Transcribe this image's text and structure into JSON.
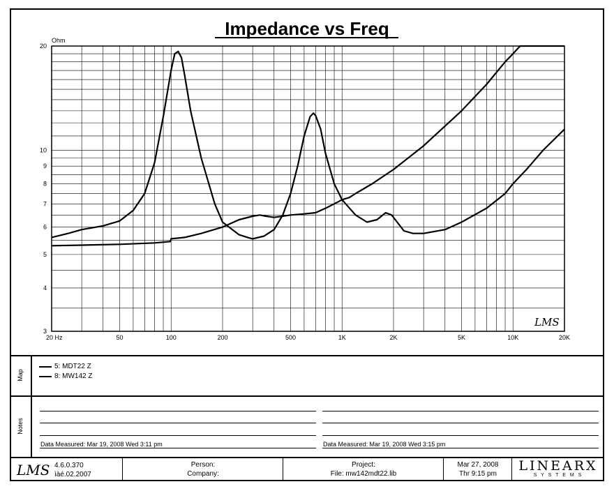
{
  "chart_data": {
    "type": "line",
    "title": "Impedance vs Freq",
    "ylabel": "Ohm",
    "x_scale": "log",
    "y_scale": "log",
    "xlim": [
      20,
      20000
    ],
    "ylim": [
      3,
      20
    ],
    "x_ticks": [
      20,
      50,
      100,
      200,
      500,
      1000,
      2000,
      5000,
      10000,
      20000
    ],
    "x_tick_labels": [
      "20  Hz",
      "50",
      "100",
      "200",
      "500",
      "1K",
      "2K",
      "5K",
      "10K",
      "20K"
    ],
    "y_ticks": [
      3,
      4,
      5,
      6,
      7,
      8,
      9,
      10,
      20
    ],
    "y_tick_labels": [
      "3",
      "4",
      "5",
      "6",
      "7",
      "8",
      "9",
      "10",
      "20"
    ],
    "grid": true,
    "series": [
      {
        "name": "5: MDT22 Z",
        "x": [
          20,
          30,
          50,
          80,
          99,
          100,
          120,
          150,
          200,
          250,
          300,
          330,
          360,
          400,
          500,
          600,
          700,
          800,
          900,
          950,
          1000,
          1100,
          1200,
          1500,
          2000,
          3000,
          5000,
          7000,
          9000,
          10000,
          11000,
          12000,
          20000
        ],
        "y": [
          5.3,
          5.32,
          5.35,
          5.4,
          5.45,
          5.55,
          5.6,
          5.75,
          6.0,
          6.3,
          6.45,
          6.5,
          6.45,
          6.4,
          6.5,
          6.55,
          6.6,
          6.8,
          7.0,
          7.1,
          7.2,
          7.3,
          7.5,
          8.0,
          8.8,
          10.3,
          13.0,
          15.5,
          18.0,
          19.0,
          20.0,
          20.0,
          20.0
        ]
      },
      {
        "name": "8: MW142 Z",
        "x": [
          20,
          25,
          30,
          40,
          50,
          60,
          70,
          80,
          90,
          100,
          105,
          110,
          115,
          120,
          130,
          150,
          180,
          200,
          250,
          280,
          300,
          350,
          400,
          450,
          500,
          550,
          600,
          650,
          680,
          700,
          750,
          800,
          900,
          1000,
          1200,
          1400,
          1600,
          1800,
          1950,
          2100,
          2300,
          2600,
          3000,
          4000,
          5000,
          7000,
          9000,
          10000,
          12000,
          15000,
          20000
        ],
        "y": [
          5.6,
          5.75,
          5.9,
          6.05,
          6.25,
          6.7,
          7.5,
          9.2,
          12.5,
          17.0,
          19.0,
          19.3,
          18.5,
          16.5,
          13.0,
          9.5,
          7.0,
          6.2,
          5.7,
          5.6,
          5.55,
          5.65,
          5.9,
          6.5,
          7.5,
          9.0,
          11.0,
          12.5,
          12.8,
          12.6,
          11.5,
          9.8,
          8.0,
          7.2,
          6.5,
          6.2,
          6.3,
          6.6,
          6.5,
          6.2,
          5.85,
          5.75,
          5.75,
          5.9,
          6.2,
          6.8,
          7.5,
          8.0,
          8.8,
          10.0,
          11.5
        ]
      }
    ]
  },
  "map": {
    "label": "Map",
    "entries": [
      "5: MDT22 Z",
      "8: MW142 Z"
    ]
  },
  "notes": {
    "label": "Notes",
    "left_measured": "Data Measured: Mar 19, 2008  Wed  3:11 pm",
    "right_measured": "Data Measured: Mar 19, 2008  Wed  3:15 pm"
  },
  "footer": {
    "logo": "LMS",
    "version": "4.6.0.370",
    "version_date": "ìàé.02.2007",
    "person_label": "Person:",
    "company_label": "Company:",
    "project_label": "Project:",
    "file_label": "File: mw142mdt22.lib",
    "date": "Mar 27, 2008",
    "time": "Thr  9:15 pm",
    "brand": "LINEARX",
    "brand_sub": "S Y S T E M S"
  },
  "watermark": "LMS"
}
